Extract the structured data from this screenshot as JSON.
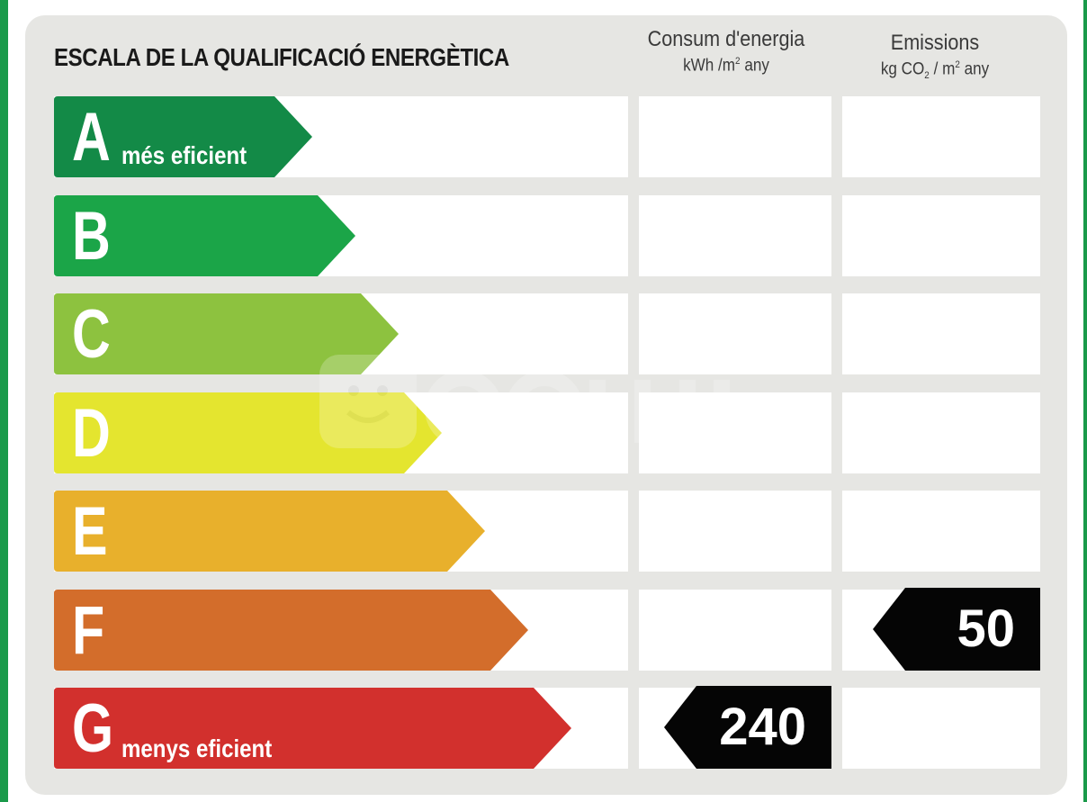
{
  "title": "ESCALA DE LA QUALIFICACIÓ ENERGÈTICA",
  "columns": {
    "energy": {
      "label": "Consum d'energia",
      "unit_pre": "kWh /m",
      "unit_sup": "2",
      "unit_post": " any"
    },
    "emissions": {
      "label": "Emissions",
      "unit_pre": "kg CO",
      "unit_sub": "2",
      "unit_mid": " / m",
      "unit_sup": "2",
      "unit_post": " any"
    }
  },
  "ratings": [
    {
      "letter": "A",
      "sublabel": "més eficient",
      "color": "#138a47"
    },
    {
      "letter": "B",
      "sublabel": "",
      "color": "#1ba548"
    },
    {
      "letter": "C",
      "sublabel": "",
      "color": "#8dc23f"
    },
    {
      "letter": "D",
      "sublabel": "",
      "color": "#e4e52f"
    },
    {
      "letter": "E",
      "sublabel": "",
      "color": "#e8b02c"
    },
    {
      "letter": "F",
      "sublabel": "",
      "color": "#d36d2b"
    },
    {
      "letter": "G",
      "sublabel": "menys eficient",
      "color": "#d2302d"
    }
  ],
  "results": {
    "energy": {
      "value": "240",
      "rating": "G"
    },
    "emissions": {
      "value": "50",
      "rating": "F"
    }
  }
}
